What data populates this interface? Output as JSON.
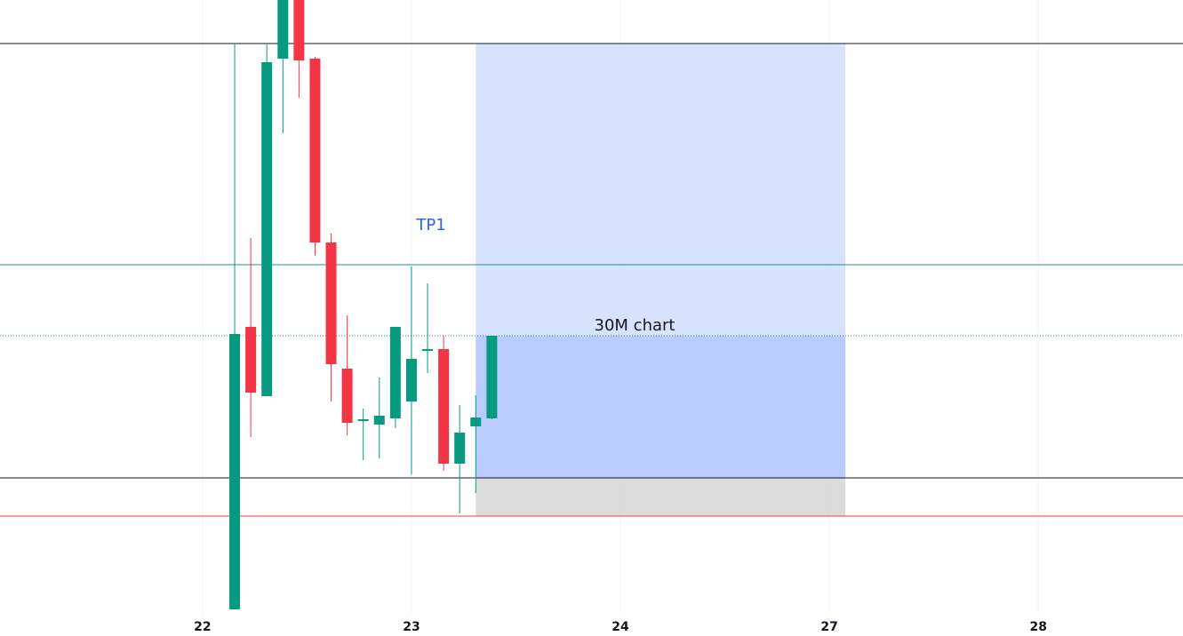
{
  "chart_data": {
    "type": "candlestick",
    "xlim": [
      -12.6,
      61
    ],
    "xticks": [
      {
        "value": 0,
        "label": "22"
      },
      {
        "value": 13,
        "label": "23"
      },
      {
        "value": 26,
        "label": "24"
      },
      {
        "value": 39,
        "label": "27"
      },
      {
        "value": 52,
        "label": "28"
      }
    ],
    "ylim": [
      26,
      716
    ],
    "grid": true,
    "up_color": "#089981",
    "down_color": "#f23645",
    "x": [
      2,
      3,
      4,
      5,
      6,
      7,
      8,
      9,
      10,
      11,
      12,
      13,
      14,
      15,
      16,
      17,
      18
    ],
    "open": [
      30,
      348,
      270,
      650,
      716,
      650,
      443,
      301,
      242,
      238,
      245,
      264,
      321,
      323,
      194,
      236,
      245
    ],
    "high": [
      666,
      448,
      666,
      716,
      716,
      652,
      453,
      361,
      256,
      291,
      348,
      416,
      397,
      338,
      260,
      271,
      338
    ],
    "low": [
      30,
      224,
      270,
      566,
      606,
      428,
      264,
      226,
      198,
      200,
      234,
      182,
      296,
      186,
      138,
      161,
      244
    ],
    "close": [
      340,
      274,
      646,
      716,
      648,
      443,
      306,
      240,
      244,
      248,
      348,
      312,
      323,
      194,
      229,
      246,
      338
    ],
    "zones": [
      {
        "x": [
          17,
          40
        ],
        "y": [
          338,
          667
        ],
        "color": "#d3dffd"
      },
      {
        "x": [
          17,
          40
        ],
        "y": [
          178,
          338
        ],
        "color": "#b2c6fd"
      },
      {
        "x": [
          17,
          40
        ],
        "y": [
          135,
          178
        ],
        "color": "#d7d7d7"
      }
    ],
    "levels": [
      {
        "value": 667,
        "color": "#131722",
        "style": "solid"
      },
      {
        "value": 418,
        "color": "#2a8a9a",
        "style": "solid"
      },
      {
        "value": 338,
        "color": "#2a8a9a",
        "style": "dotted"
      },
      {
        "value": 178,
        "color": "#131722",
        "style": "solid"
      },
      {
        "value": 135,
        "color": "#f23645",
        "style": "solid"
      }
    ],
    "annotations": [
      {
        "text": "TP1",
        "color": "#2962ff"
      },
      {
        "text": "30M chart",
        "color": "#131722"
      }
    ]
  }
}
